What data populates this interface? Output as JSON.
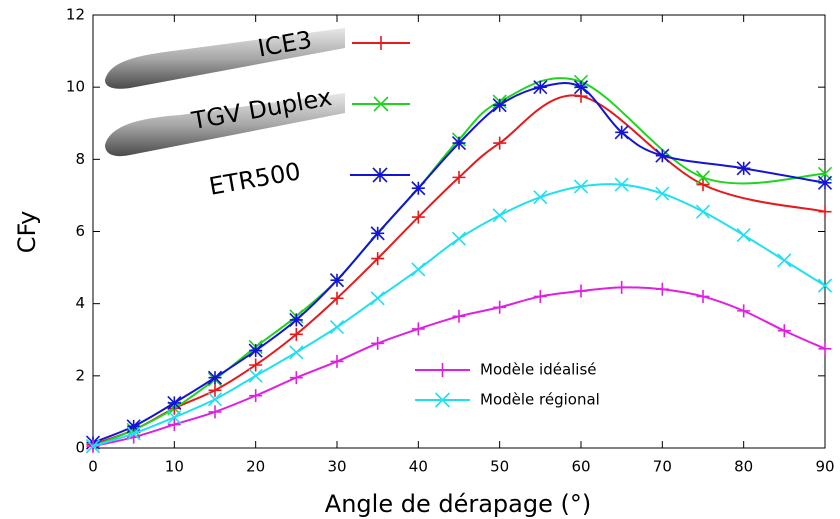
{
  "chart_data": {
    "type": "line",
    "x_label": "Angle de dérapage (°)",
    "y_label": "CFy",
    "xlim": [
      0,
      90
    ],
    "xticks": [
      0,
      10,
      20,
      30,
      40,
      50,
      60,
      70,
      80,
      90
    ],
    "ylim": [
      0,
      12
    ],
    "yticks": [
      0,
      2,
      4,
      6,
      8,
      10,
      12
    ],
    "series": [
      {
        "name": "ICE3",
        "color": "#e41a1c",
        "marker": "plus",
        "x": [
          0,
          5,
          10,
          15,
          20,
          25,
          30,
          35,
          40,
          45,
          50,
          60,
          75,
          90
        ],
        "values": [
          0.1,
          0.5,
          1.1,
          1.6,
          2.3,
          3.15,
          4.15,
          5.25,
          6.4,
          7.5,
          8.45,
          9.75,
          7.3,
          6.55
        ]
      },
      {
        "name": "TGV Duplex",
        "color": "#1fd41f",
        "marker": "cross",
        "x": [
          0,
          5,
          10,
          15,
          20,
          25,
          30,
          35,
          40,
          45,
          50,
          60,
          75,
          90
        ],
        "values": [
          0.05,
          0.5,
          1.1,
          1.9,
          2.8,
          3.65,
          4.65,
          5.95,
          7.2,
          8.55,
          9.6,
          10.15,
          7.5,
          7.6
        ]
      },
      {
        "name": "ETR500",
        "color": "#1414d4",
        "marker": "star",
        "x": [
          0,
          5,
          10,
          15,
          20,
          25,
          30,
          35,
          40,
          45,
          50,
          55,
          60,
          65,
          70,
          80,
          90
        ],
        "values": [
          0.15,
          0.6,
          1.25,
          1.95,
          2.7,
          3.55,
          4.65,
          5.95,
          7.2,
          8.45,
          9.5,
          10.0,
          10.0,
          8.75,
          8.1,
          7.75,
          7.35
        ]
      },
      {
        "name": "Modèle idéalisé",
        "color": "#e020e0",
        "marker": "plus",
        "x": [
          0,
          5,
          10,
          15,
          20,
          25,
          30,
          35,
          40,
          45,
          50,
          55,
          60,
          65,
          70,
          75,
          80,
          85,
          90
        ],
        "values": [
          0.05,
          0.3,
          0.65,
          1.0,
          1.45,
          1.95,
          2.4,
          2.9,
          3.3,
          3.65,
          3.9,
          4.2,
          4.35,
          4.45,
          4.4,
          4.2,
          3.8,
          3.25,
          2.75
        ]
      },
      {
        "name": "Modèle régional",
        "color": "#20e0f0",
        "marker": "cross",
        "x": [
          0,
          5,
          10,
          15,
          20,
          25,
          30,
          35,
          40,
          45,
          50,
          55,
          60,
          65,
          70,
          75,
          80,
          85,
          90
        ],
        "values": [
          0.05,
          0.4,
          0.85,
          1.35,
          2.0,
          2.65,
          3.35,
          4.15,
          4.95,
          5.8,
          6.45,
          6.95,
          7.25,
          7.3,
          7.05,
          6.55,
          5.9,
          5.2,
          4.5
        ]
      }
    ]
  }
}
